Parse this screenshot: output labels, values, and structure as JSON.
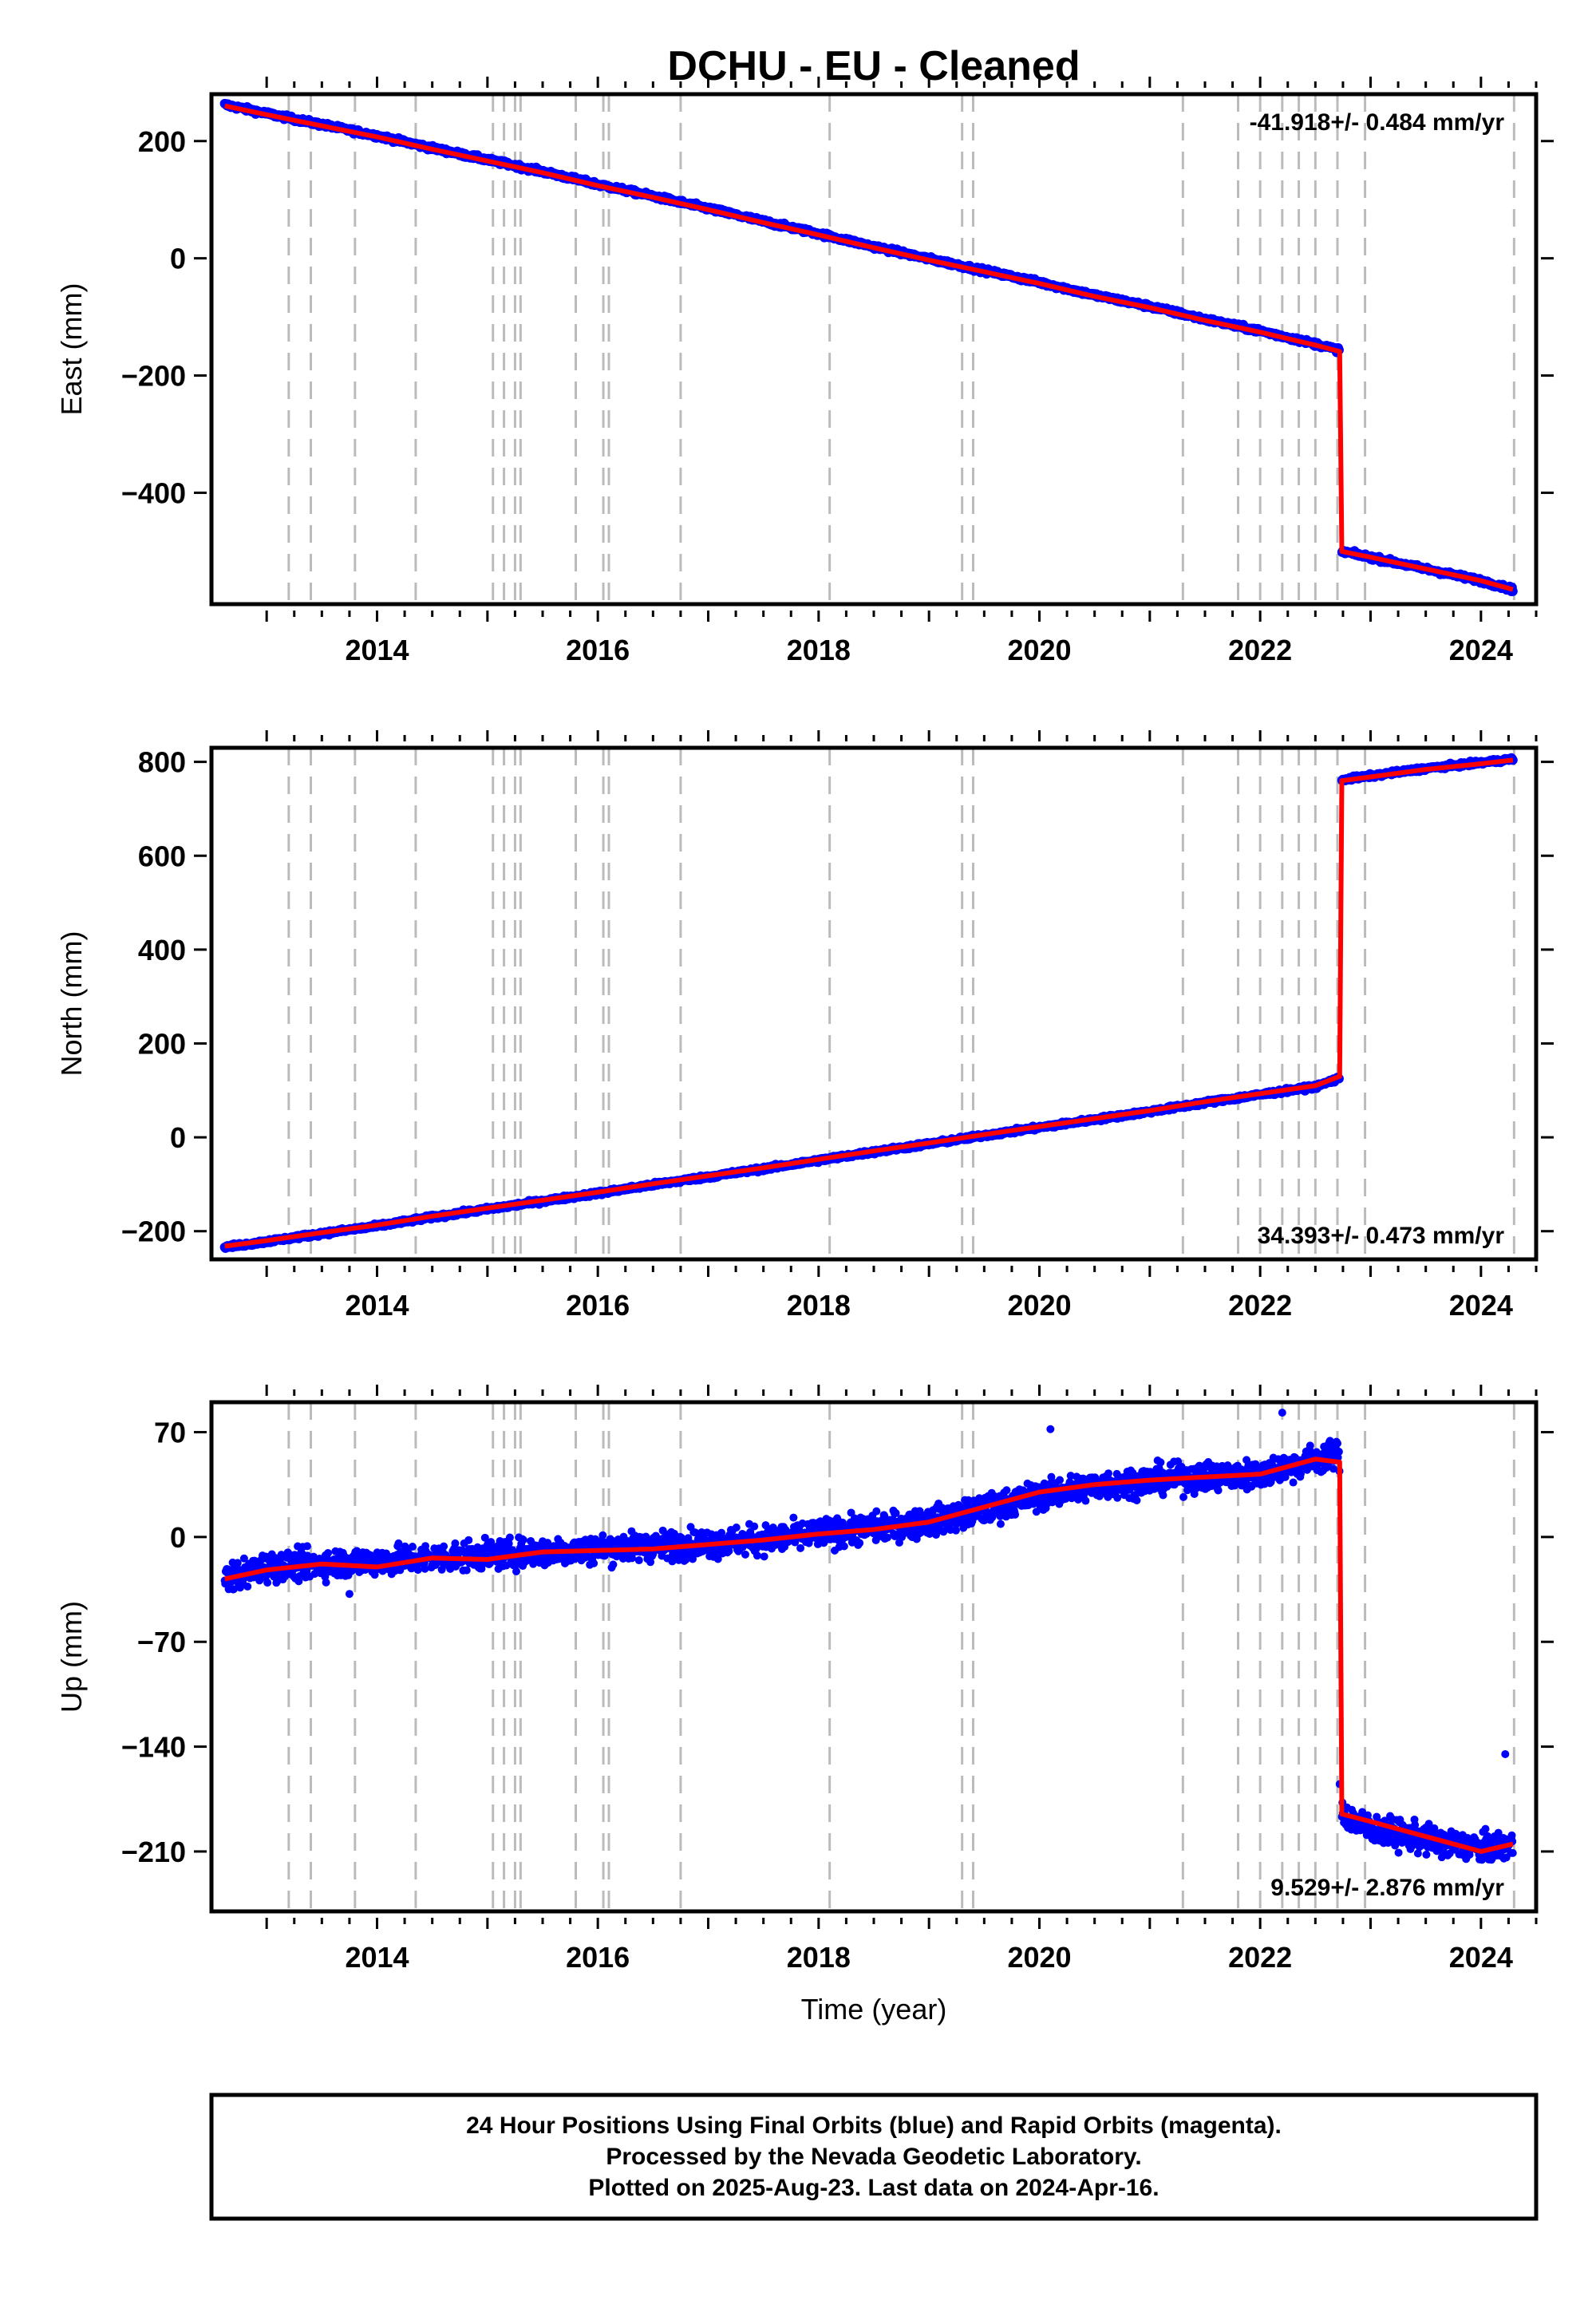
{
  "title": "DCHU  - EU - Cleaned",
  "colors": {
    "final_orbits": "#0000ff",
    "model": "#ff0000",
    "break_lines": "#bbbbbb",
    "frame": "#000000"
  },
  "footer": {
    "line1": "24 Hour Positions Using Final Orbits (blue) and Rapid Orbits (magenta).",
    "line2": "Processed by the Nevada Geodetic Laboratory.",
    "line3": "Plotted on 2025-Aug-23. Last data on 2024-Apr-16."
  },
  "chart_data": [
    {
      "type": "scatter",
      "title": "DCHU  - EU - Cleaned",
      "xlabel": "",
      "ylabel": "East (mm)",
      "xlim": [
        2012.5,
        2024.5
      ],
      "ylim": [
        -590,
        280
      ],
      "xticks": [
        2014,
        2016,
        2018,
        2020,
        2022,
        2024
      ],
      "yticks": [
        -400,
        -200,
        0,
        200
      ],
      "annotation": "-41.918+/- 0.484 mm/yr",
      "annotation_position": "top-right",
      "grid": false,
      "vertical_lines": [
        2013.2,
        2013.4,
        2013.8,
        2014.35,
        2015.05,
        2015.15,
        2015.25,
        2015.3,
        2015.8,
        2016.05,
        2016.1,
        2016.75,
        2018.1,
        2019.3,
        2019.4,
        2021.3,
        2021.8,
        2022.0,
        2022.2,
        2022.35,
        2022.5,
        2022.7,
        2022.95,
        2024.3
      ],
      "series": [
        {
          "role": "final_orbits",
          "x": [
            2012.62,
            2013.0,
            2013.5,
            2014.0,
            2014.5,
            2015.0,
            2015.5,
            2016.0,
            2016.5,
            2017.0,
            2017.5,
            2018.0,
            2018.5,
            2019.0,
            2019.5,
            2020.0,
            2020.5,
            2021.0,
            2021.5,
            2022.0,
            2022.5,
            2022.72,
            2022.74,
            2023.0,
            2023.5,
            2024.0,
            2024.29
          ],
          "y": [
            262,
            247,
            228,
            209,
            188,
            168,
            148,
            126,
            106,
            85,
            63,
            42,
            20,
            -1,
            -21,
            -41,
            -63,
            -82,
            -104,
            -124,
            -146,
            -157,
            -500,
            -510,
            -530,
            -550,
            -565
          ]
        },
        {
          "role": "model",
          "x": [
            2012.62,
            2013.0,
            2013.5,
            2014.0,
            2014.5,
            2015.0,
            2015.5,
            2016.0,
            2016.5,
            2017.0,
            2017.5,
            2018.0,
            2018.5,
            2019.0,
            2019.5,
            2020.0,
            2020.5,
            2021.0,
            2021.5,
            2022.0,
            2022.5,
            2022.72,
            2022.74,
            2023.0,
            2023.5,
            2024.0,
            2024.29
          ],
          "y": [
            260,
            245,
            226,
            207,
            186,
            166,
            146,
            124,
            104,
            83,
            61,
            40,
            18,
            -3,
            -23,
            -43,
            -65,
            -84,
            -106,
            -126,
            -148,
            -159,
            -500,
            -510,
            -530,
            -550,
            -565
          ]
        }
      ]
    },
    {
      "type": "scatter",
      "xlabel": "",
      "ylabel": "North (mm)",
      "xlim": [
        2012.5,
        2024.5
      ],
      "ylim": [
        -260,
        830
      ],
      "xticks": [
        2014,
        2016,
        2018,
        2020,
        2022,
        2024
      ],
      "yticks": [
        -200,
        0,
        200,
        400,
        600,
        800
      ],
      "annotation": "34.393+/- 0.473 mm/yr",
      "annotation_position": "bottom-right",
      "grid": false,
      "vertical_lines": [
        2013.2,
        2013.4,
        2013.8,
        2014.35,
        2015.05,
        2015.15,
        2015.25,
        2015.3,
        2015.8,
        2016.05,
        2016.1,
        2016.75,
        2018.1,
        2019.3,
        2019.4,
        2021.3,
        2021.8,
        2022.0,
        2022.2,
        2022.35,
        2022.5,
        2022.7,
        2022.95,
        2024.3
      ],
      "series": [
        {
          "role": "final_orbits",
          "x": [
            2012.62,
            2013.0,
            2013.5,
            2014.0,
            2014.5,
            2015.0,
            2015.5,
            2016.0,
            2016.5,
            2017.0,
            2017.5,
            2018.0,
            2018.5,
            2019.0,
            2019.5,
            2020.0,
            2020.5,
            2021.0,
            2021.5,
            2022.0,
            2022.5,
            2022.72,
            2022.74,
            2023.0,
            2023.5,
            2024.0,
            2024.29
          ],
          "y": [
            -234,
            -222,
            -205,
            -189,
            -170,
            -153,
            -136,
            -119,
            -101,
            -84,
            -67,
            -49,
            -31,
            -14,
            4,
            21,
            38,
            55,
            74,
            91,
            108,
            126,
            762,
            770,
            786,
            798,
            806
          ]
        },
        {
          "role": "model",
          "x": [
            2012.62,
            2013.0,
            2013.5,
            2014.0,
            2014.5,
            2015.0,
            2015.5,
            2016.0,
            2016.5,
            2017.0,
            2017.5,
            2018.0,
            2018.5,
            2019.0,
            2019.5,
            2020.0,
            2020.5,
            2021.0,
            2021.5,
            2022.0,
            2022.5,
            2022.72,
            2022.74,
            2023.0,
            2023.5,
            2024.0,
            2024.29
          ],
          "y": [
            -232,
            -220,
            -203,
            -187,
            -168,
            -151,
            -134,
            -117,
            -99,
            -82,
            -65,
            -47,
            -29,
            -12,
            6,
            23,
            40,
            57,
            76,
            93,
            110,
            130,
            760,
            768,
            784,
            796,
            804
          ]
        }
      ]
    },
    {
      "type": "scatter",
      "xlabel": "Time (year)",
      "ylabel": "Up (mm)",
      "xlim": [
        2012.5,
        2024.5
      ],
      "ylim": [
        -250,
        90
      ],
      "xticks": [
        2014,
        2016,
        2018,
        2020,
        2022,
        2024
      ],
      "yticks": [
        -210,
        -140,
        -70,
        0,
        70
      ],
      "annotation": "9.529+/- 2.876 mm/yr",
      "annotation_position": "bottom-right",
      "grid": false,
      "vertical_lines": [
        2013.2,
        2013.4,
        2013.8,
        2014.35,
        2015.05,
        2015.15,
        2015.25,
        2015.3,
        2015.8,
        2016.05,
        2016.1,
        2016.75,
        2018.1,
        2019.3,
        2019.4,
        2021.3,
        2021.8,
        2022.0,
        2022.2,
        2022.35,
        2022.5,
        2022.7,
        2022.95,
        2024.3
      ],
      "series": [
        {
          "role": "final_orbits",
          "x": [
            2012.62,
            2013.0,
            2013.5,
            2014.0,
            2014.5,
            2015.0,
            2015.5,
            2016.0,
            2016.5,
            2017.0,
            2017.5,
            2018.0,
            2018.5,
            2019.0,
            2019.5,
            2020.0,
            2020.5,
            2021.0,
            2021.5,
            2022.0,
            2022.5,
            2022.72,
            2022.74,
            2023.0,
            2023.5,
            2024.0,
            2024.29
          ],
          "y": [
            -28,
            -20,
            -18,
            -16,
            -14,
            -12,
            -10,
            -8,
            -6,
            -4,
            -2,
            2,
            6,
            10,
            18,
            28,
            34,
            38,
            40,
            42,
            52,
            55,
            -185,
            -195,
            -202,
            -208,
            -205
          ]
        },
        {
          "role": "model",
          "x": [
            2012.62,
            2013.0,
            2013.5,
            2014.0,
            2014.5,
            2015.0,
            2015.5,
            2016.0,
            2016.5,
            2017.0,
            2017.5,
            2018.0,
            2018.5,
            2019.0,
            2019.5,
            2020.0,
            2020.5,
            2021.0,
            2021.5,
            2022.0,
            2022.5,
            2022.72,
            2022.74,
            2023.0,
            2023.5,
            2024.0,
            2024.29
          ],
          "y": [
            -28,
            -22,
            -18,
            -20,
            -14,
            -15,
            -10,
            -9,
            -8,
            -5,
            -2,
            2,
            5,
            10,
            20,
            30,
            35,
            38,
            40,
            42,
            52,
            50,
            -185,
            -190,
            -200,
            -210,
            -205
          ]
        }
      ]
    }
  ]
}
